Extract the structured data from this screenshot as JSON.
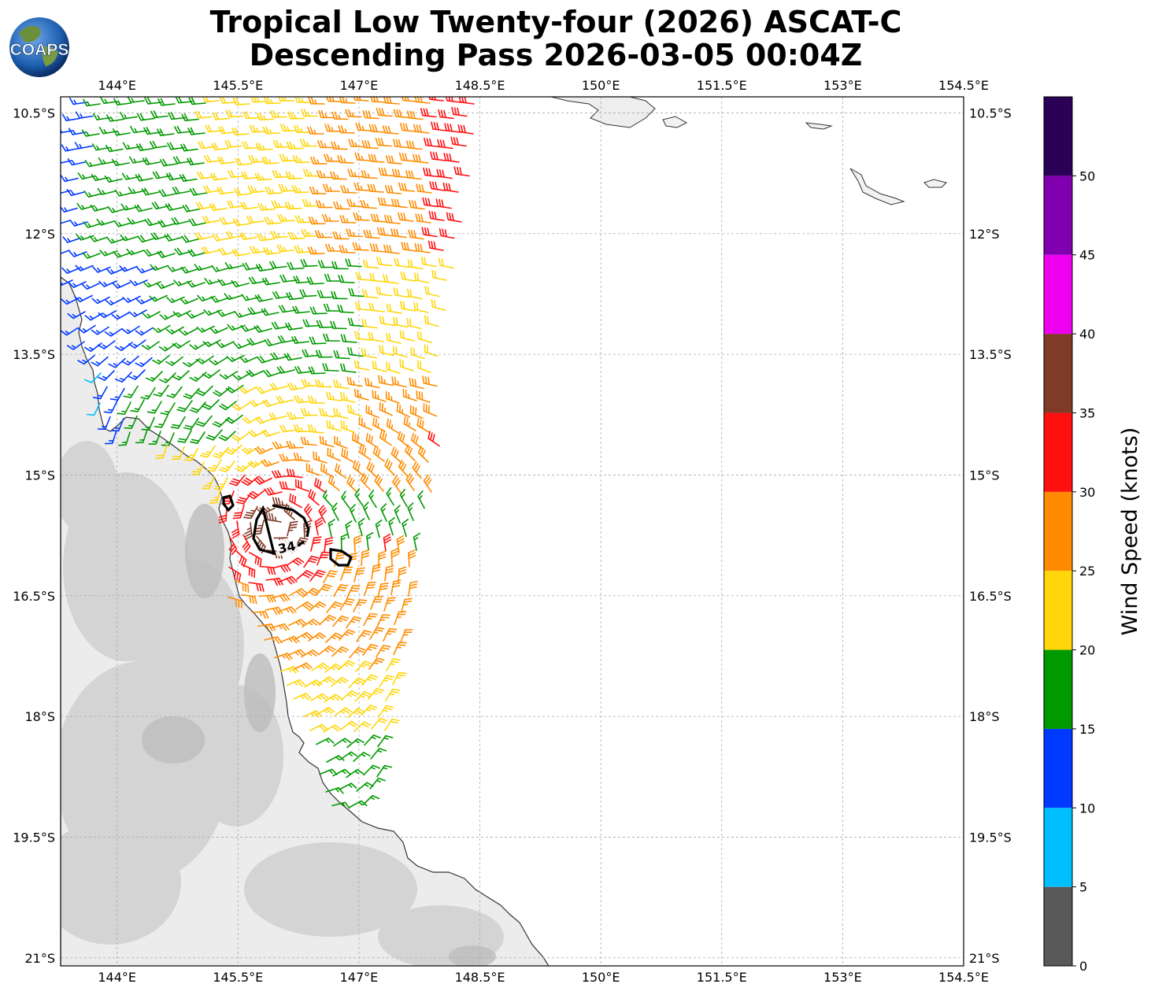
{
  "header": {
    "title_line1": "Tropical Low Twenty-four (2026) ASCAT-C",
    "title_line2": "Descending Pass 2026-03-05 00:04Z",
    "logo_text": "COAPS"
  },
  "map": {
    "lon_range": [
      143.3,
      154.5
    ],
    "lat_range": [
      -21.1,
      -10.3
    ],
    "lon_ticks": [
      "144°E",
      "145.5°E",
      "147°E",
      "148.5°E",
      "150°E",
      "151.5°E",
      "153°E",
      "154.5°E"
    ],
    "lon_tick_values": [
      144,
      145.5,
      147,
      148.5,
      150,
      151.5,
      153,
      154.5
    ],
    "lat_ticks": [
      "10.5°S",
      "12°S",
      "13.5°S",
      "15°S",
      "16.5°S",
      "18°S",
      "19.5°S",
      "21°S"
    ],
    "lat_tick_values": [
      -10.5,
      -12,
      -13.5,
      -15,
      -16.5,
      -18,
      -19.5,
      -21
    ],
    "gridlines": true,
    "contour_label": "34",
    "contour_value_knots": 34
  },
  "colorbar": {
    "title": "Wind Speed (knots)",
    "tick_labels": [
      "0",
      "5",
      "10",
      "15",
      "20",
      "25",
      "30",
      "35",
      "40",
      "45",
      "50"
    ],
    "bins": [
      {
        "min": 0,
        "max": 5,
        "color": "#595959"
      },
      {
        "min": 5,
        "max": 10,
        "color": "#00bfff"
      },
      {
        "min": 10,
        "max": 15,
        "color": "#0039ff"
      },
      {
        "min": 15,
        "max": 20,
        "color": "#009900"
      },
      {
        "min": 20,
        "max": 25,
        "color": "#ffd60a"
      },
      {
        "min": 25,
        "max": 30,
        "color": "#ff8c00"
      },
      {
        "min": 30,
        "max": 35,
        "color": "#ff1010"
      },
      {
        "min": 35,
        "max": 40,
        "color": "#7f3b28"
      },
      {
        "min": 40,
        "max": 45,
        "color": "#f000f0"
      },
      {
        "min": 45,
        "max": 50,
        "color": "#8000b0"
      },
      {
        "min": 50,
        "max": 55,
        "color": "#2b0057"
      }
    ]
  }
}
